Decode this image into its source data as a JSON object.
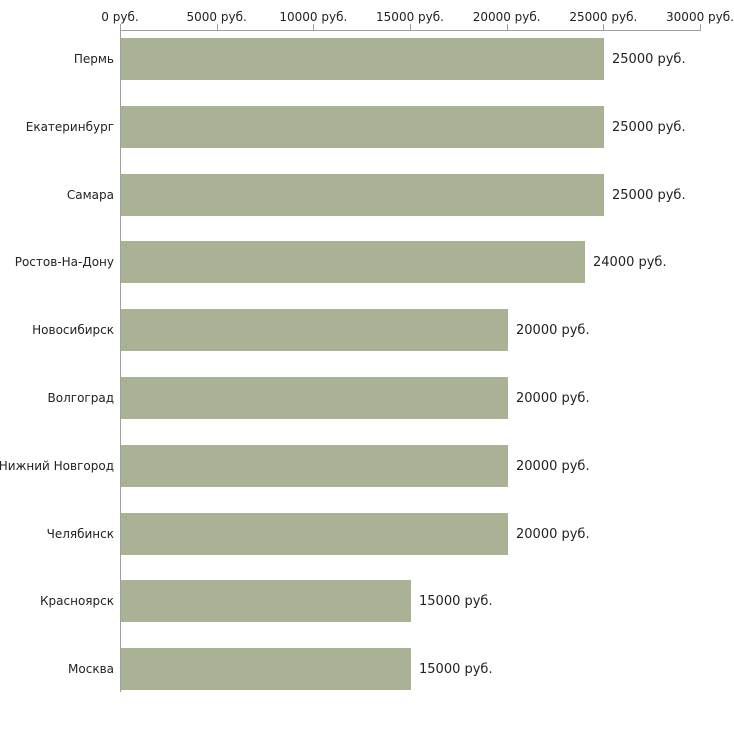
{
  "chart_data": {
    "type": "bar",
    "orientation": "horizontal",
    "title": "",
    "xlabel": "",
    "ylabel": "",
    "xlim": [
      0,
      30000
    ],
    "tick_step": 5000,
    "x_tick_labels": [
      "0 руб.",
      "5000 руб.",
      "10000 руб.",
      "15000 руб.",
      "20000 руб.",
      "25000 руб.",
      "30000 руб."
    ],
    "categories": [
      "Пермь",
      "Екатеринбург",
      "Самара",
      "Ростов-На-Дону",
      "Новосибирск",
      "Волгоград",
      "Нижний Новгород",
      "Челябинск",
      "Красноярск",
      "Москва"
    ],
    "values": [
      25000,
      25000,
      25000,
      24000,
      20000,
      20000,
      20000,
      20000,
      15000,
      15000
    ],
    "value_labels": [
      "25000 руб.",
      "25000 руб.",
      "25000 руб.",
      "24000 руб.",
      "20000 руб.",
      "20000 руб.",
      "20000 руб.",
      "20000 руб.",
      "15000 руб.",
      "15000 руб."
    ],
    "bar_color": "#a9b294",
    "axis_color": "#a0a0a0",
    "grid": false,
    "legend": false
  }
}
